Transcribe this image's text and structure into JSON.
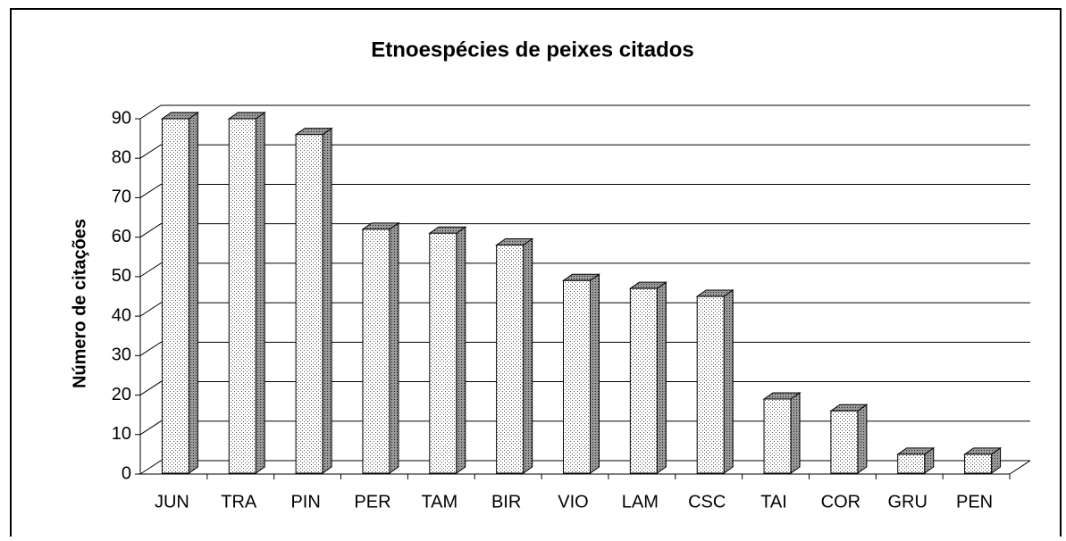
{
  "chart_data": {
    "type": "bar3d",
    "title": "Etnoespécies de peixes citados",
    "y_label": "Número de citações",
    "categories": [
      "JUN",
      "TRA",
      "PIN",
      "PER",
      "TAM",
      "BIR",
      "VIO",
      "LAM",
      "CSC",
      "TAI",
      "COR",
      "GRU",
      "PEN"
    ],
    "values": [
      90,
      90,
      86,
      62,
      61,
      58,
      49,
      47,
      45,
      19,
      16,
      5,
      5
    ],
    "color": "#f2f2f2",
    "ylim": [
      0,
      90
    ],
    "yticks": [
      0,
      10,
      20,
      30,
      40,
      50,
      60,
      70,
      80,
      90
    ],
    "grid": true
  }
}
